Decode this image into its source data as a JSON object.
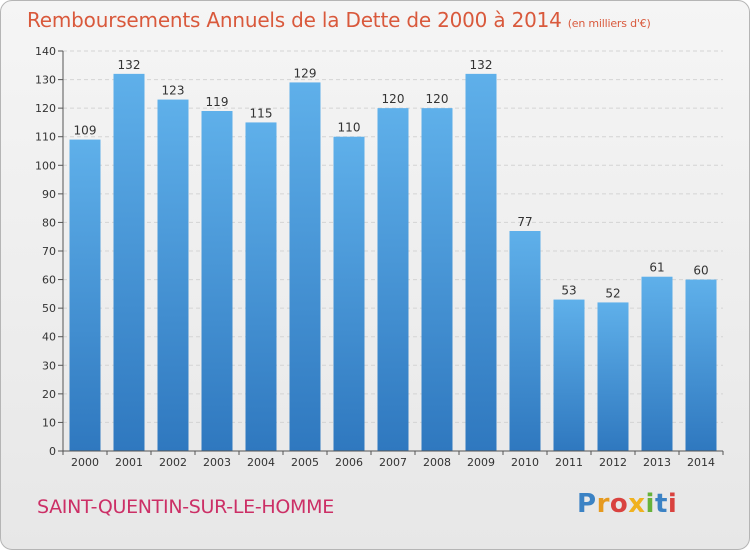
{
  "header": {
    "title": "Remboursements Annuels de la Dette de 2000 à 2014",
    "subtitle": "(en milliers d'€)"
  },
  "footer": {
    "commune": "SAINT-QUENTIN-SUR-LE-HOMME",
    "logo": {
      "icon": "proxiti-logo",
      "letters": [
        "P",
        "r",
        "o",
        "x",
        "i",
        "t",
        "i"
      ]
    }
  },
  "colors": {
    "title": "#d9593c",
    "commune": "#cc2f66",
    "bar_top": "#5fb0ea",
    "bar_bottom": "#2f78bf",
    "background": "#eeeeee"
  },
  "chart_data": {
    "type": "bar",
    "title": "Remboursements Annuels de la Dette de 2000 à 2014",
    "subtitle": "(en milliers d'€)",
    "categories": [
      "2000",
      "2001",
      "2002",
      "2003",
      "2004",
      "2005",
      "2006",
      "2007",
      "2008",
      "2009",
      "2010",
      "2011",
      "2012",
      "2013",
      "2014"
    ],
    "values": [
      109,
      132,
      123,
      119,
      115,
      129,
      110,
      120,
      120,
      132,
      77,
      53,
      52,
      61,
      60
    ],
    "ylim": [
      0,
      140
    ],
    "yticks": [
      0,
      10,
      20,
      30,
      40,
      50,
      60,
      70,
      80,
      90,
      100,
      110,
      120,
      130,
      140
    ],
    "grid": "horizontal",
    "data_labels": true
  }
}
